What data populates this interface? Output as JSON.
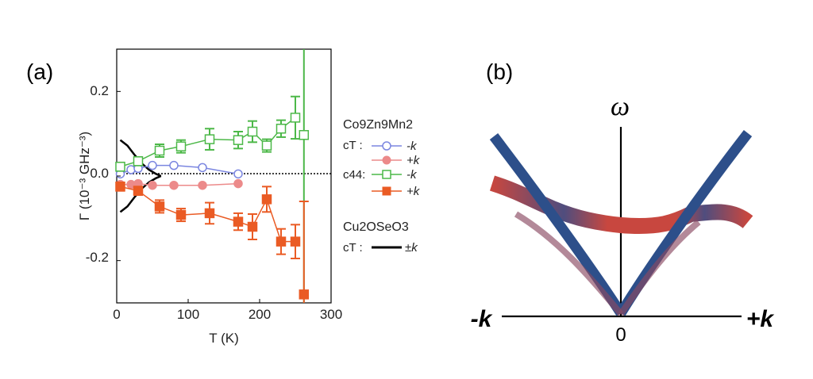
{
  "chart_data": [
    {
      "panel": "(a)",
      "type": "scatter",
      "xlabel": "T (K)",
      "ylabel": "Γ (10⁻³ GHz⁻³)",
      "xlim": [
        0,
        300
      ],
      "ylim": [
        -0.3,
        0.3
      ],
      "xticks": [
        "0",
        "100",
        "200",
        "300"
      ],
      "yticks": [
        "0.2",
        "0.0",
        "-0.2"
      ],
      "legend": {
        "material1": "Co9Zn9Mn2",
        "material2": "Cu2OSeO3",
        "c_T": "cT :",
        "c_44": "c44:",
        "minus_k": "-k",
        "plus_k": "+k",
        "pm_k": "±k"
      },
      "series": [
        {
          "name": "cT -k",
          "color": "#7b86e0",
          "marker": "circle-open",
          "x": [
            5,
            20,
            30,
            50,
            80,
            120,
            170
          ],
          "y": [
            0.005,
            0.015,
            0.018,
            0.025,
            0.025,
            0.02,
            0.005
          ]
        },
        {
          "name": "cT +k",
          "color": "#ec8a8a",
          "marker": "circle-filled",
          "x": [
            5,
            20,
            30,
            50,
            80,
            120,
            170
          ],
          "y": [
            -0.02,
            -0.02,
            -0.018,
            -0.022,
            -0.022,
            -0.022,
            -0.018
          ]
        },
        {
          "name": "c44 -k",
          "color": "#4cb848",
          "marker": "square-open",
          "x": [
            5,
            30,
            60,
            90,
            130,
            170,
            190,
            210,
            230,
            250,
            262
          ],
          "y": [
            0.022,
            0.035,
            0.06,
            0.07,
            0.087,
            0.085,
            0.105,
            0.072,
            0.112,
            0.138,
            0.097
          ],
          "err": [
            0.01,
            0.01,
            0.015,
            0.015,
            0.025,
            0.02,
            0.025,
            0.015,
            0.02,
            0.05,
            0.7
          ]
        },
        {
          "name": "c44 +k",
          "color": "#ea5b24",
          "marker": "square-filled",
          "x": [
            5,
            30,
            60,
            90,
            130,
            170,
            190,
            210,
            230,
            250,
            262
          ],
          "y": [
            -0.025,
            -0.035,
            -0.072,
            -0.092,
            -0.088,
            -0.108,
            -0.12,
            -0.055,
            -0.155,
            -0.155,
            -0.28
          ],
          "err": [
            0.01,
            0.01,
            0.015,
            0.015,
            0.025,
            0.02,
            0.03,
            0.03,
            0.03,
            0.04,
            0.22
          ]
        }
      ],
      "cu2oseo3_curve": {
        "name": "Cu2OSeO3 cT ±k",
        "color": "#000000",
        "T": [
          5,
          15,
          25,
          35,
          45,
          55,
          62
        ],
        "y_abs": [
          0.085,
          0.072,
          0.05,
          0.03,
          0.015,
          0.005,
          0.0
        ]
      }
    },
    {
      "panel": "(b)",
      "type": "diagram",
      "y_label": "ω",
      "left_label": "-k",
      "right_label": "+k",
      "origin_label": "0"
    }
  ]
}
